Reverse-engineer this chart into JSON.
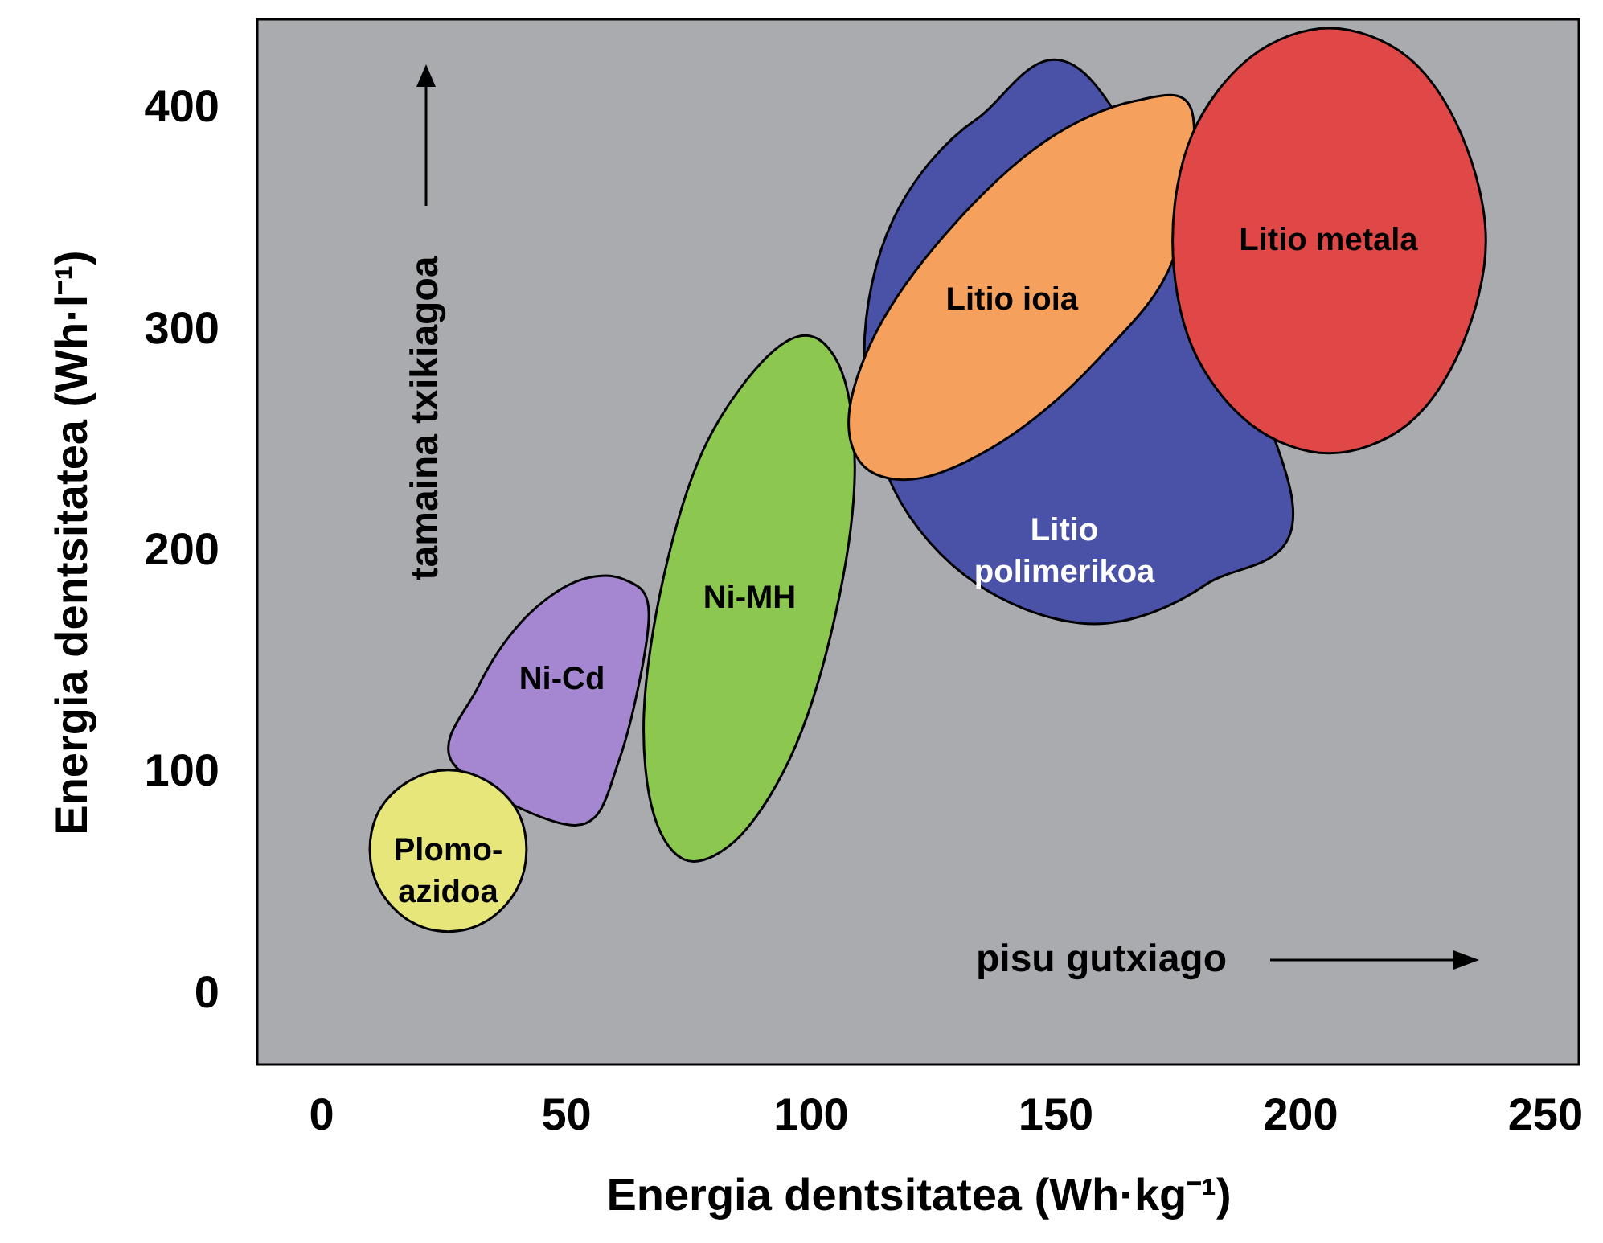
{
  "chart_data": {
    "type": "area",
    "xlabel": "Energia dentsitatea (Wh·kg⁻¹)",
    "ylabel": "Energia dentsitatea (Wh·l⁻¹)",
    "xlim": [
      -13,
      257
    ],
    "ylim": [
      -32,
      440
    ],
    "xticks": [
      0,
      50,
      100,
      150,
      200,
      250
    ],
    "yticks": [
      0,
      100,
      200,
      300,
      400
    ],
    "grid": false,
    "annotations": [
      "tamaina txikiagoa",
      "pisu gutxiago"
    ],
    "series": [
      {
        "name": "Ni-Cd",
        "color": "#a487d0",
        "x": [
          62,
          67,
          61,
          52,
          27,
          32,
          41,
          52
        ],
        "values": [
          187,
          170,
          106,
          76,
          104,
          138,
          168,
          186
        ]
      },
      {
        "name": "Plomo-azidoa",
        "color": "#e6e67a",
        "x": [
          42,
          40,
          34,
          26,
          18,
          12,
          10,
          12,
          18,
          26,
          34,
          40
        ],
        "values": [
          65,
          83,
          96,
          101,
          96,
          83,
          65,
          47,
          33,
          28,
          33,
          47
        ]
      },
      {
        "name": "Ni-MH",
        "color": "#8cc850",
        "x": [
          100,
          107,
          109,
          105,
          97,
          86,
          75,
          68,
          66,
          70,
          78,
          90
        ],
        "values": [
          297,
          277,
          230,
          170,
          112,
          72,
          60,
          81,
          127,
          188,
          245,
          285
        ]
      },
      {
        "name": "Litio polimerikoa",
        "color": "#4a52a8",
        "x": [
          158,
          134,
          117,
          111,
          117,
          134,
          158,
          181,
          198
        ],
        "values": [
          411,
          395,
          350,
          289,
          228,
          185,
          167,
          185,
          228
        ]
      },
      {
        "name": "Litio ioia",
        "color": "#f5a05c",
        "x": [
          178,
          174,
          159,
          141,
          123,
          111,
          108,
          115,
          130,
          148,
          166
        ],
        "values": [
          398,
          331,
          287,
          252,
          233,
          238,
          264,
          305,
          349,
          385,
          403
        ]
      },
      {
        "name": "Litio metala",
        "color": "#e04848",
        "x": [
          238,
          233,
          222,
          206,
          190,
          178,
          174,
          178,
          190,
          206,
          222,
          233
        ],
        "values": [
          340,
          388,
          423,
          436,
          423,
          388,
          340,
          292,
          257,
          244,
          257,
          292
        ]
      }
    ]
  }
}
